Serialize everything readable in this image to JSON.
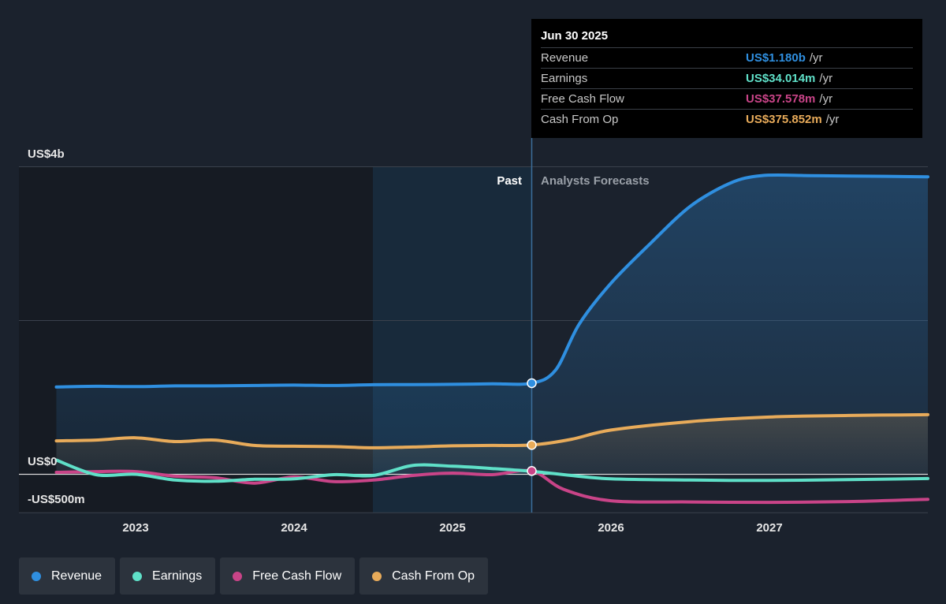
{
  "chart_data": {
    "type": "line",
    "x_ticks": [
      "2023",
      "2024",
      "2025",
      "2026",
      "2027"
    ],
    "y_axis": {
      "labels": [
        {
          "value": 4000,
          "text": "US$4b"
        },
        {
          "value": 0,
          "text": "US$0"
        },
        {
          "value": -500,
          "text": "-US$500m"
        }
      ],
      "unit": "US$m"
    },
    "regions": {
      "past_label": "Past",
      "forecast_label": "Analysts Forecasts",
      "divider_date": 2025.5
    },
    "series": [
      {
        "name": "Revenue",
        "color": "#2f8fe0",
        "fill": true,
        "points": [
          [
            2022.5,
            1130
          ],
          [
            2022.75,
            1140
          ],
          [
            2023.0,
            1135
          ],
          [
            2023.25,
            1145
          ],
          [
            2023.5,
            1145
          ],
          [
            2023.75,
            1150
          ],
          [
            2024.0,
            1155
          ],
          [
            2024.25,
            1150
          ],
          [
            2024.5,
            1160
          ],
          [
            2024.75,
            1162
          ],
          [
            2025.0,
            1165
          ],
          [
            2025.25,
            1172
          ],
          [
            2025.5,
            1180
          ],
          [
            2025.65,
            1350
          ],
          [
            2025.8,
            1950
          ],
          [
            2026.0,
            2480
          ],
          [
            2026.25,
            3000
          ],
          [
            2026.5,
            3480
          ],
          [
            2026.75,
            3780
          ],
          [
            2026.95,
            3880
          ],
          [
            2027.25,
            3880
          ],
          [
            2027.5,
            3875
          ],
          [
            2028.0,
            3865
          ]
        ]
      },
      {
        "name": "Earnings",
        "color": "#5fe0c8",
        "fill": false,
        "points": [
          [
            2022.5,
            180
          ],
          [
            2022.75,
            -10
          ],
          [
            2023.0,
            -5
          ],
          [
            2023.25,
            -80
          ],
          [
            2023.5,
            -95
          ],
          [
            2023.75,
            -70
          ],
          [
            2024.0,
            -65
          ],
          [
            2024.25,
            -10
          ],
          [
            2024.5,
            -20
          ],
          [
            2024.75,
            110
          ],
          [
            2025.0,
            100
          ],
          [
            2025.25,
            70
          ],
          [
            2025.5,
            34
          ],
          [
            2025.75,
            -20
          ],
          [
            2026.0,
            -65
          ],
          [
            2026.5,
            -80
          ],
          [
            2027.0,
            -85
          ],
          [
            2027.5,
            -75
          ],
          [
            2028.0,
            -60
          ]
        ]
      },
      {
        "name": "Free Cash Flow",
        "color": "#c94488",
        "fill": false,
        "points": [
          [
            2022.5,
            20
          ],
          [
            2022.75,
            30
          ],
          [
            2023.0,
            30
          ],
          [
            2023.25,
            -30
          ],
          [
            2023.5,
            -50
          ],
          [
            2023.75,
            -120
          ],
          [
            2024.0,
            -40
          ],
          [
            2024.25,
            -100
          ],
          [
            2024.5,
            -80
          ],
          [
            2024.75,
            -20
          ],
          [
            2025.0,
            10
          ],
          [
            2025.25,
            -10
          ],
          [
            2025.5,
            38
          ],
          [
            2025.7,
            -200
          ],
          [
            2026.0,
            -350
          ],
          [
            2026.5,
            -365
          ],
          [
            2027.0,
            -370
          ],
          [
            2027.5,
            -360
          ],
          [
            2028.0,
            -330
          ]
        ]
      },
      {
        "name": "Cash From Op",
        "color": "#e8ab5a",
        "fill": true,
        "points": [
          [
            2022.5,
            430
          ],
          [
            2022.75,
            440
          ],
          [
            2023.0,
            470
          ],
          [
            2023.25,
            420
          ],
          [
            2023.5,
            440
          ],
          [
            2023.75,
            370
          ],
          [
            2024.0,
            360
          ],
          [
            2024.25,
            355
          ],
          [
            2024.5,
            340
          ],
          [
            2024.75,
            350
          ],
          [
            2025.0,
            365
          ],
          [
            2025.25,
            370
          ],
          [
            2025.5,
            376
          ],
          [
            2025.75,
            450
          ],
          [
            2026.0,
            570
          ],
          [
            2026.5,
            680
          ],
          [
            2027.0,
            740
          ],
          [
            2027.5,
            760
          ],
          [
            2028.0,
            770
          ]
        ]
      }
    ],
    "highlight_date": 2025.5,
    "grid": true
  },
  "tooltip": {
    "date": "Jun 30 2025",
    "rows": [
      {
        "name": "Revenue",
        "value": "US$1.180b",
        "unit": "/yr",
        "color": "#2f8fe0"
      },
      {
        "name": "Earnings",
        "value": "US$34.014m",
        "unit": "/yr",
        "color": "#5fe0c8"
      },
      {
        "name": "Free Cash Flow",
        "value": "US$37.578m",
        "unit": "/yr",
        "color": "#c94488"
      },
      {
        "name": "Cash From Op",
        "value": "US$375.852m",
        "unit": "/yr",
        "color": "#e8ab5a"
      }
    ]
  },
  "legend": [
    {
      "label": "Revenue",
      "color": "#2f8fe0"
    },
    {
      "label": "Earnings",
      "color": "#5fe0c8"
    },
    {
      "label": "Free Cash Flow",
      "color": "#c94488"
    },
    {
      "label": "Cash From Op",
      "color": "#e8ab5a"
    }
  ]
}
